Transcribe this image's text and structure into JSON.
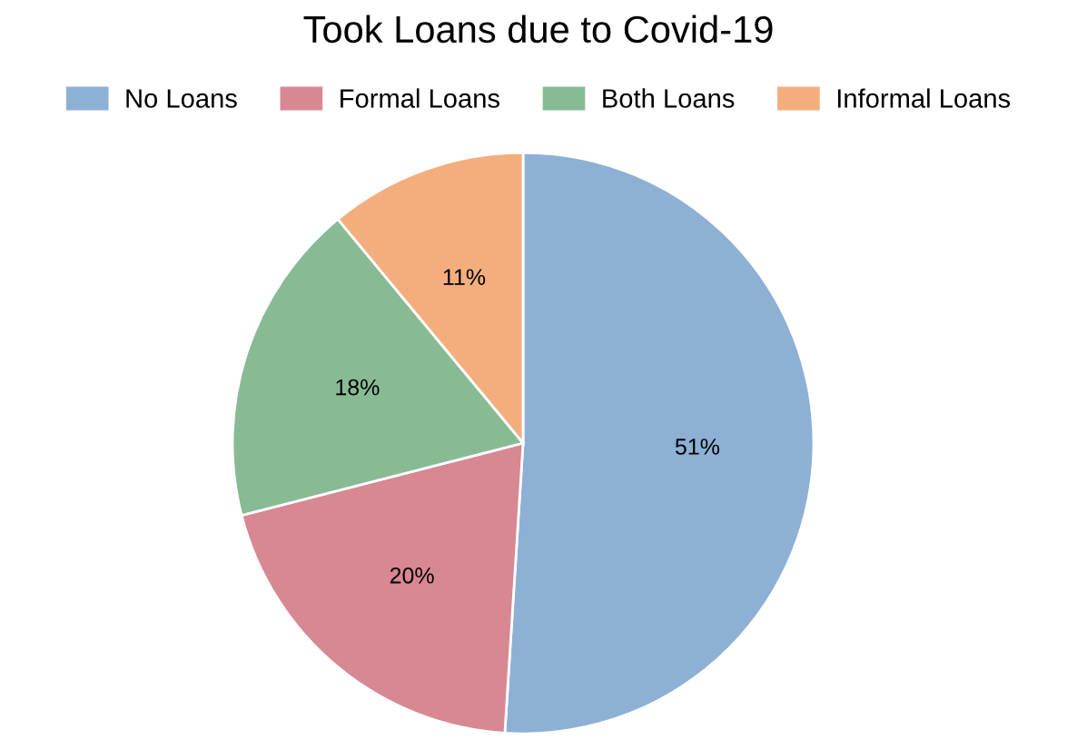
{
  "chart_data": {
    "type": "pie",
    "title": "Took Loans due to Covid-19",
    "categories": [
      "No Loans",
      "Formal Loans",
      "Both Loans",
      "Informal Loans"
    ],
    "values": [
      51,
      20,
      18,
      11
    ],
    "value_labels": [
      "51%",
      "20%",
      "18%",
      "11%"
    ],
    "colors": [
      "#8eb0d5",
      "#d88893",
      "#88bb94",
      "#f4ae7e"
    ],
    "legend": "top"
  }
}
